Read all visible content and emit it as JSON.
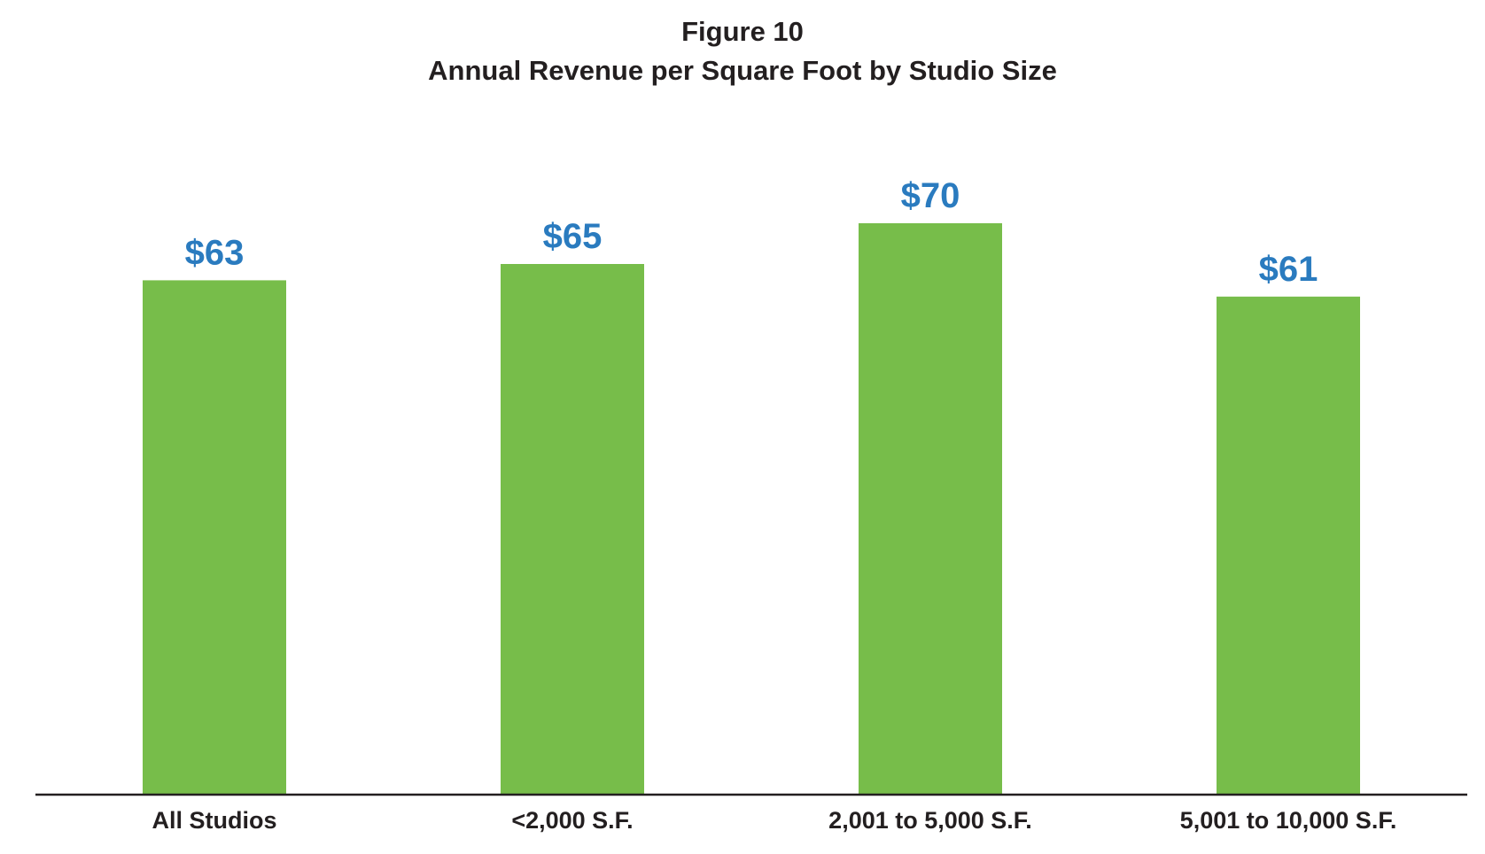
{
  "figure_label": "Figure 10",
  "colors": {
    "bar": "#77bd4a",
    "value_label": "#2a7bbf",
    "text": "#231f20",
    "axis": "#231f20"
  },
  "chart_data": {
    "type": "bar",
    "title": "Annual Revenue per Square Foot by Studio Size",
    "categories": [
      "All Studios",
      "<2,000 S.F.",
      "2,001 to 5,000 S.F.",
      "5,001 to 10,000 S.F."
    ],
    "values": [
      63,
      65,
      70,
      61
    ],
    "value_labels": [
      "$63",
      "$65",
      "$70",
      "$61"
    ],
    "xlabel": "",
    "ylabel": "",
    "grid": false,
    "legend": "none"
  }
}
